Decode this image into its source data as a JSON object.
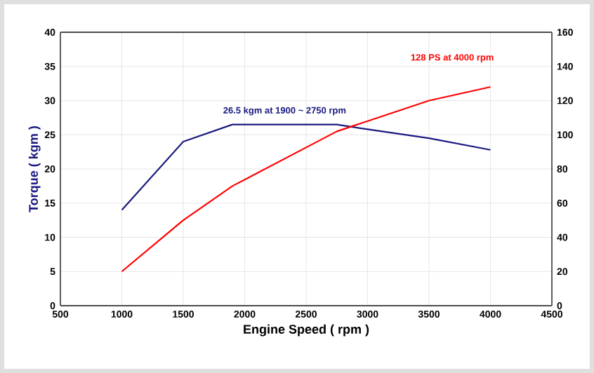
{
  "chart_data": {
    "type": "line",
    "xlabel": "Engine Speed ( rpm )",
    "ylabel": "Torque ( kgm )",
    "x": [
      1000,
      1500,
      1900,
      2750,
      3000,
      3500,
      4000
    ],
    "series": [
      {
        "color": "#1a1a80",
        "values": [
          14,
          24,
          26.5,
          26.5,
          25.8,
          24.5,
          22.8
        ]
      },
      {
        "color": "#ff0000",
        "axis": "y2",
        "values": [
          20,
          50,
          70,
          102,
          108,
          120,
          128
        ]
      }
    ],
    "annotations": [
      "26.5 kgm at 1900 ~ 2750 rpm",
      "128 PS at 4000 rpm"
    ],
    "xlim": [
      500,
      4500
    ],
    "xticks": [
      500,
      1000,
      1500,
      2000,
      2500,
      3000,
      3500,
      4000,
      4500
    ],
    "ylim": [
      0,
      40
    ],
    "yticks": [
      0,
      5,
      10,
      15,
      20,
      25,
      30,
      35,
      40
    ],
    "y2lim": [
      0,
      160
    ],
    "y2ticks": [
      0,
      20,
      40,
      60,
      80,
      100,
      120,
      140,
      160
    ],
    "grid": true,
    "marker": "none",
    "line_style": "solid"
  }
}
